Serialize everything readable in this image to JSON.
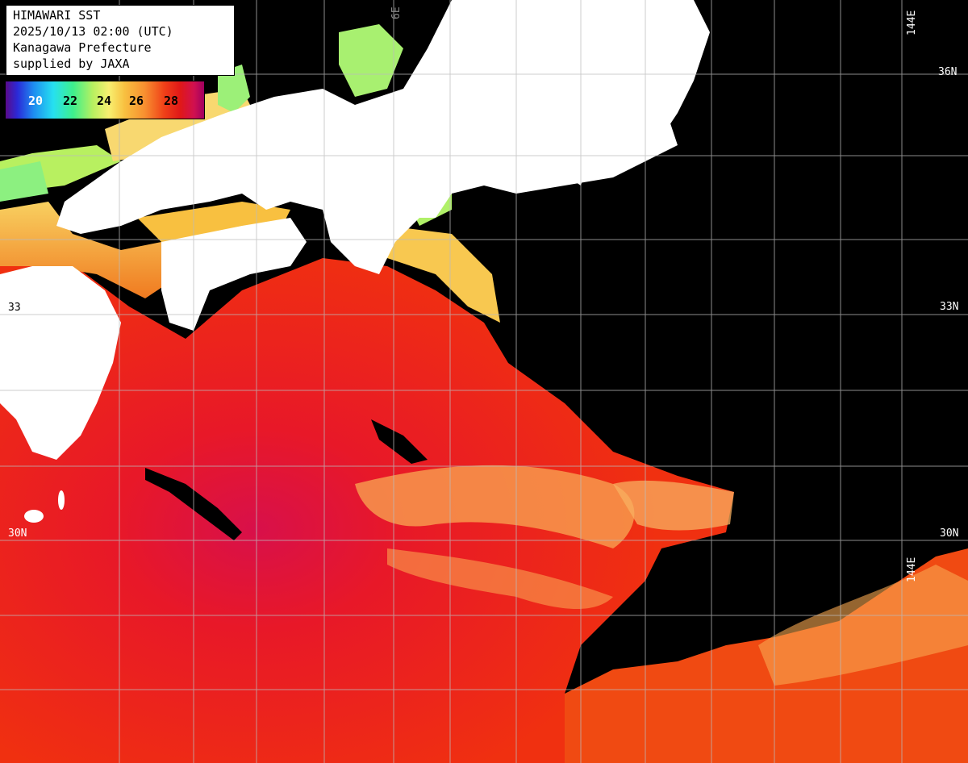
{
  "header": {
    "line1": "HIMAWARI SST",
    "line2": "2025/10/13 02:00 (UTC)",
    "line3": "Kanagawa Prefecture",
    "line4": "supplied by JAXA"
  },
  "legend": {
    "ticks": [
      "20",
      "22",
      "24",
      "26",
      "28"
    ]
  },
  "grid_labels": {
    "lat_36_right": "36N",
    "lat_33_left": "33",
    "lat_33_right": "33N",
    "lat_30_left": "30N",
    "lat_30_right": "30N",
    "lon_136_top": "6E",
    "lon_144_top": "144E",
    "lon_144_bottom": "144E"
  },
  "colors": {
    "land": "#ffffff",
    "no_data": "#000000",
    "grid": "#cccccc"
  }
}
